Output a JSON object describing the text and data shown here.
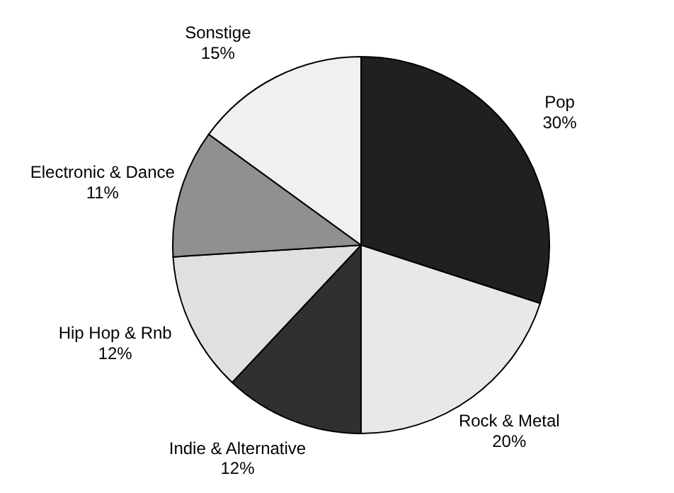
{
  "chart_data": {
    "type": "pie",
    "categories": [
      "Pop",
      "Rock & Metal",
      "Indie & Alternative",
      "Hip Hop & Rnb",
      "Electronic & Dance",
      "Sonstige"
    ],
    "values": [
      30,
      20,
      12,
      12,
      11,
      15
    ],
    "colors": [
      "#202020",
      "#e8e8e8",
      "#303030",
      "#e0e0e0",
      "#909090",
      "#f0f0f0"
    ],
    "value_labels": [
      "30%",
      "20%",
      "12%",
      "12%",
      "11%",
      "15%"
    ]
  }
}
